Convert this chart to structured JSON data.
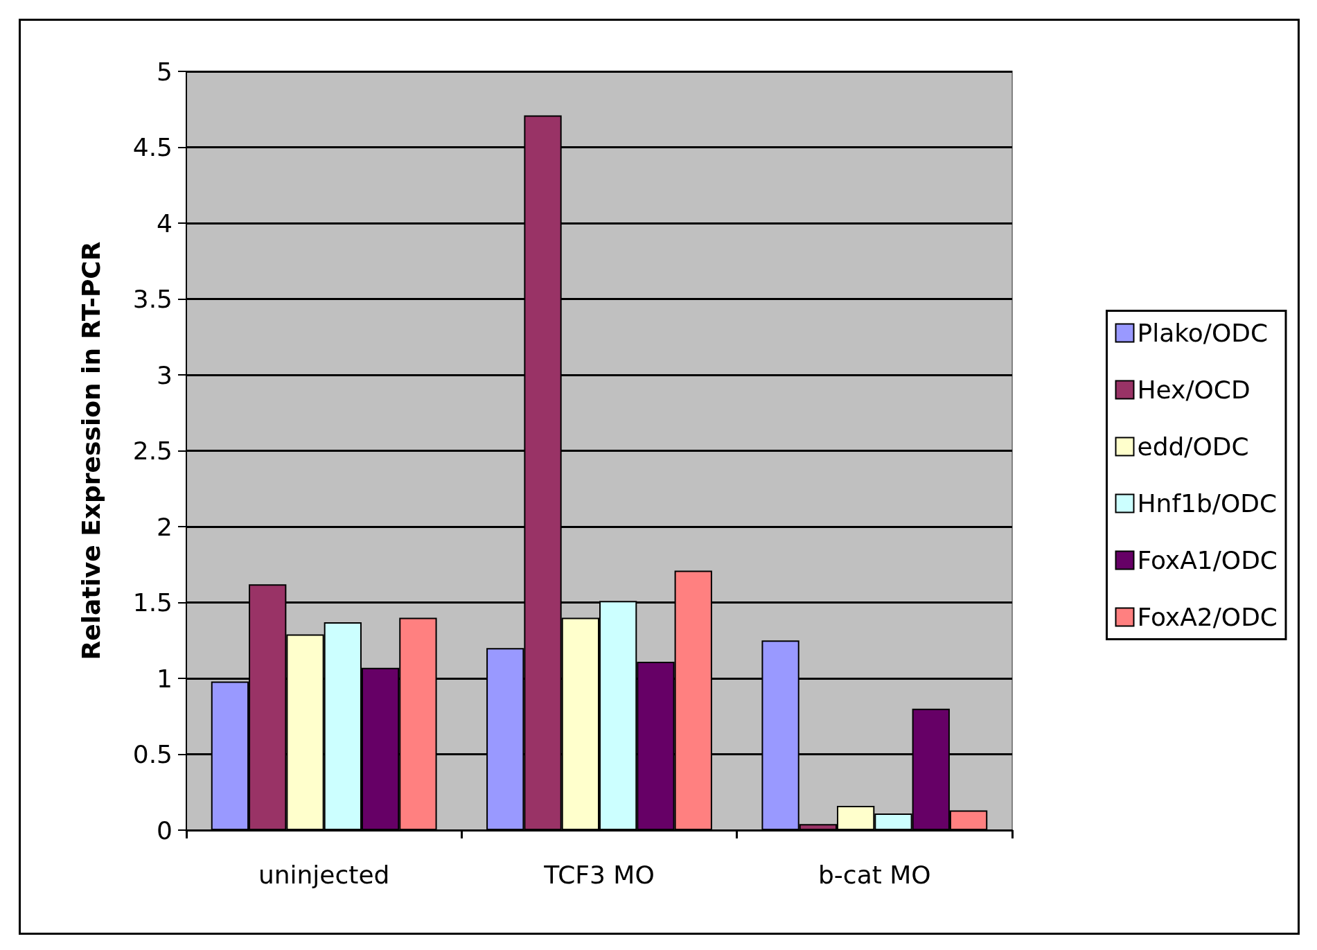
{
  "chart_data": {
    "type": "bar",
    "ylabel": "Relative Expression in RT-PCR",
    "categories": [
      "uninjected",
      "TCF3 MO",
      "b-cat MO"
    ],
    "series": [
      {
        "name": "Plako/ODC",
        "color": "#9999ff",
        "values": [
          0.98,
          1.2,
          1.25
        ]
      },
      {
        "name": "Hex/OCD",
        "color": "#993366",
        "values": [
          1.62,
          4.71,
          0.04
        ]
      },
      {
        "name": "edd/ODC",
        "color": "#ffffcc",
        "values": [
          1.29,
          1.4,
          0.16
        ]
      },
      {
        "name": "Hnf1b/ODC",
        "color": "#ccffff",
        "values": [
          1.37,
          1.51,
          0.11
        ]
      },
      {
        "name": "FoxA1/ODC",
        "color": "#660066",
        "values": [
          1.07,
          1.11,
          0.8
        ]
      },
      {
        "name": "FoxA2/ODC",
        "color": "#ff8080",
        "values": [
          1.4,
          1.71,
          0.13
        ]
      }
    ],
    "ylim": [
      0,
      5
    ],
    "yticks": [
      0,
      0.5,
      1,
      1.5,
      2,
      2.5,
      3,
      3.5,
      4,
      4.5,
      5
    ],
    "grid": "y",
    "legend": "right"
  }
}
